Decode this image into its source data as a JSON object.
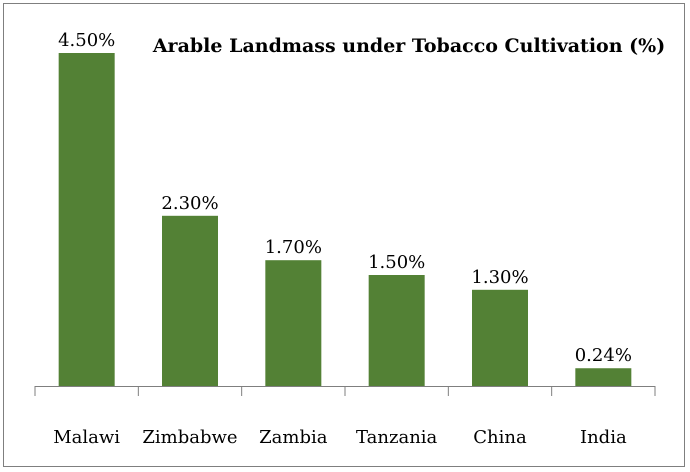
{
  "chart_data": {
    "type": "bar",
    "title": "Arable Landmass under Tobacco Cultivation (%)",
    "categories": [
      "Malawi",
      "Zimbabwe",
      "Zambia",
      "Tanzania",
      "China",
      "India"
    ],
    "values": [
      4.5,
      2.3,
      1.7,
      1.5,
      1.3,
      0.24
    ],
    "data_labels": [
      "4.50%",
      "2.30%",
      "1.70%",
      "1.50%",
      "1.30%",
      "0.24%"
    ],
    "xlabel": "",
    "ylabel": "",
    "ylim": [
      0,
      4.5
    ],
    "grid": false,
    "legend": "none",
    "bar_color": "#538135",
    "axis_color": "#7f7f7f"
  }
}
